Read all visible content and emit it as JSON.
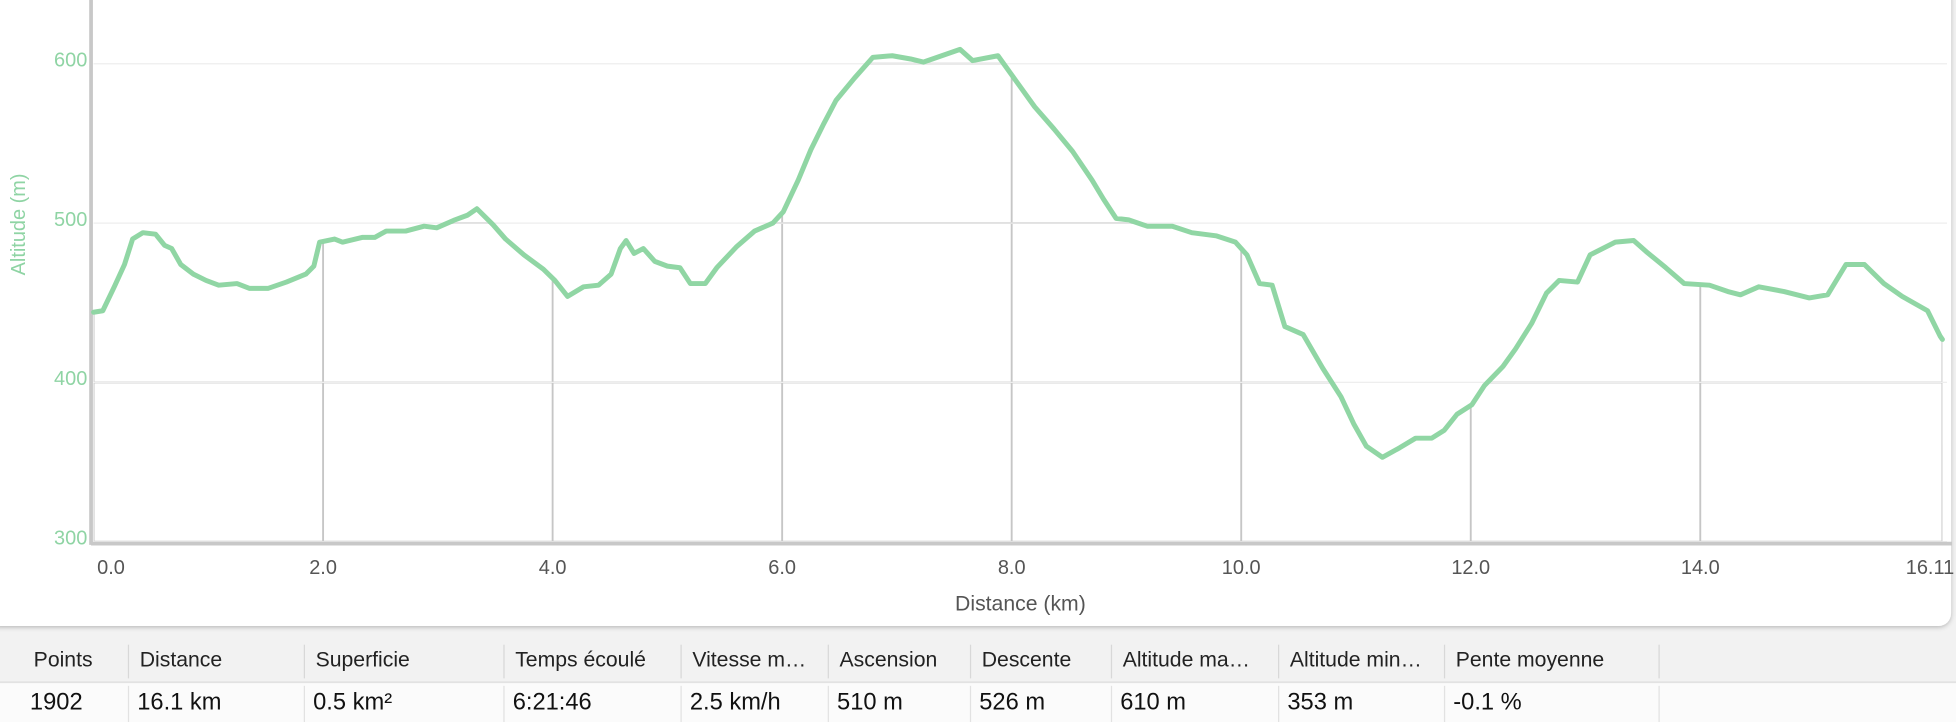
{
  "chart_data": {
    "type": "line",
    "y_label": "Altitude (m)",
    "x_label": "Distance (km)",
    "color": "#90d6a4",
    "x": [
      0,
      0.08,
      0.18,
      0.27,
      0.34,
      0.43,
      0.54,
      0.62,
      0.68,
      0.76,
      0.87,
      0.98,
      1.09,
      1.25,
      1.36,
      1.52,
      1.68,
      1.85,
      1.92,
      1.97,
      2.1,
      2.17,
      2.34,
      2.45,
      2.55,
      2.72,
      2.88,
      2.99,
      3.15,
      3.26,
      3.34,
      3.48,
      3.59,
      3.75,
      3.92,
      4.02,
      4.13,
      4.27,
      4.4,
      4.51,
      4.59,
      4.64,
      4.71,
      4.79,
      4.89,
      5.0,
      5.11,
      5.2,
      5.33,
      5.43,
      5.6,
      5.76,
      5.92,
      6.01,
      6.14,
      6.25,
      6.36,
      6.47,
      6.63,
      6.79,
      6.96,
      7.12,
      7.23,
      7.39,
      7.55,
      7.66,
      7.88,
      8.04,
      8.2,
      8.37,
      8.53,
      8.7,
      8.8,
      8.91,
      9.02,
      9.18,
      9.4,
      9.57,
      9.78,
      9.95,
      10.05,
      10.16,
      10.27,
      10.38,
      10.54,
      10.71,
      10.87,
      10.98,
      11.09,
      11.23,
      11.38,
      11.52,
      11.66,
      11.77,
      11.88,
      12.01,
      12.12,
      12.28,
      12.39,
      12.53,
      12.66,
      12.77,
      12.93,
      13.04,
      13.15,
      13.26,
      13.42,
      13.53,
      13.7,
      13.86,
      14.08,
      14.24,
      14.35,
      14.51,
      14.73,
      14.95,
      15.11,
      15.27,
      15.43,
      15.6,
      15.76,
      15.98,
      16.09,
      16.11
    ],
    "values": [
      444,
      445,
      460,
      474,
      490,
      494,
      493,
      486,
      484,
      474,
      468,
      464,
      461,
      462,
      459,
      459,
      463,
      468,
      473,
      488,
      490,
      488,
      491,
      491,
      495,
      495,
      498,
      497,
      502,
      505,
      509,
      499,
      490,
      480,
      471,
      464,
      454,
      460,
      461,
      468,
      484,
      489,
      481,
      484,
      476,
      473,
      472,
      462,
      462,
      472,
      485,
      495,
      500,
      507,
      527,
      546,
      562,
      577,
      591,
      604,
      605,
      603,
      601,
      605,
      609,
      602,
      605,
      589,
      573,
      559,
      545,
      527,
      515,
      503,
      502,
      498,
      498,
      494,
      492,
      488,
      480,
      462,
      461,
      435,
      430,
      409,
      391,
      374,
      360,
      353,
      359,
      365,
      365,
      370,
      380,
      386,
      398,
      410,
      421,
      437,
      456,
      464,
      463,
      480,
      484,
      488,
      489,
      482,
      472,
      462,
      461,
      457,
      455,
      460,
      457,
      453,
      455,
      474,
      474,
      462,
      454,
      445,
      429,
      427
    ],
    "xlim": [
      0,
      16.15
    ],
    "ylim": [
      298,
      640
    ],
    "xticks": [
      {
        "value": 0,
        "label": "0.0"
      },
      {
        "value": 2,
        "label": "2.0"
      },
      {
        "value": 4,
        "label": "4.0"
      },
      {
        "value": 6,
        "label": "6.0"
      },
      {
        "value": 8,
        "label": "8.0"
      },
      {
        "value": 10,
        "label": "10.0"
      },
      {
        "value": 12,
        "label": "12.0"
      },
      {
        "value": 14,
        "label": "14.0"
      },
      16.11
    ],
    "yticks": [
      300,
      400,
      500,
      600
    ],
    "grid": true
  },
  "table": {
    "columns": [
      "Points",
      "Distance",
      "Superficie",
      "Temps écoulé",
      "Vitesse m…",
      "Ascension",
      "Descente",
      "Altitude ma…",
      "Altitude min…",
      "Pente moyenne"
    ],
    "rows": [
      [
        "1902",
        "16.1 km",
        "0.5 km²",
        "6:21:46",
        "2.5 km/h",
        "510 m",
        "526 m",
        "610 m",
        "353 m",
        "-0.1 %"
      ]
    ]
  }
}
